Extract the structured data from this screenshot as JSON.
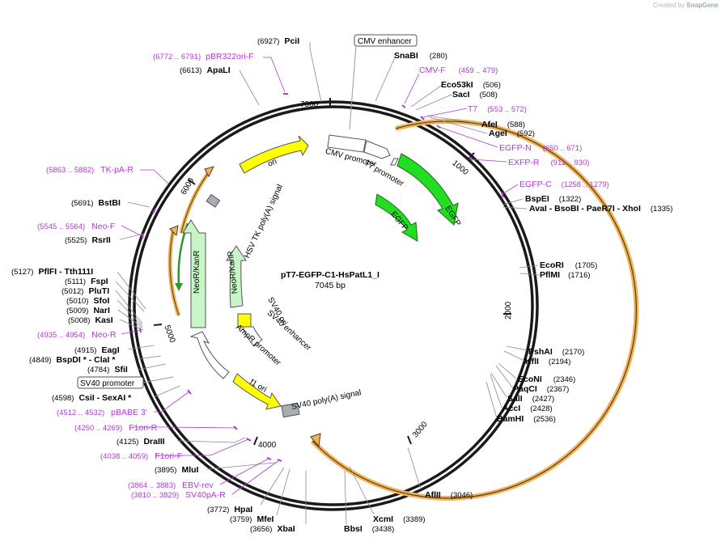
{
  "title": "pT7-EGFP-C1-HsPatL1_I",
  "length_text": "7045 bp",
  "total_bp": 7045,
  "credit": {
    "prefix": "Created by",
    "brand": "SnapGene"
  },
  "ticks": [
    {
      "bp": 1000,
      "label": "1000"
    },
    {
      "bp": 2000,
      "label": "2000"
    },
    {
      "bp": 3000,
      "label": "3000"
    },
    {
      "bp": 4000,
      "label": "4000"
    },
    {
      "bp": 5000,
      "label": "5000"
    },
    {
      "bp": 6000,
      "label": "6000"
    },
    {
      "bp": 7000,
      "label": "7000"
    }
  ],
  "colors": {
    "ring": "#1a1a1a",
    "orf": "#f0b35a",
    "egfp": "#22dd22",
    "ori": "#ffff00",
    "polya": "#a8adb3",
    "neo_light": "#c8f5c8",
    "neo_orf": "#2a9a2a",
    "promoter": "#ffffff",
    "primer": "#b03ad6"
  },
  "enzymes": [
    {
      "name": "PciI",
      "pos_text": "(6927)"
    },
    {
      "name": "SnaBI",
      "pos_text": "(280)"
    },
    {
      "name": "ApaLI",
      "pos_text": "(6613)"
    },
    {
      "name": "Eco53kI",
      "pos_text": "(506)"
    },
    {
      "name": "SacI",
      "pos_text": "(508)"
    },
    {
      "name": "AfeI",
      "pos_text": "(588)"
    },
    {
      "name": "AgeI",
      "pos_text": "(592)"
    },
    {
      "name": "BspEI",
      "pos_text": "(1322)"
    },
    {
      "name": "AvaI - BsoBI - PaeR7I - XhoI",
      "pos_text": "(1335)"
    },
    {
      "name": "EcoRI",
      "pos_text": "(1705)"
    },
    {
      "name": "PflMI",
      "pos_text": "(1716)"
    },
    {
      "name": "PshAI",
      "pos_text": "(2170)"
    },
    {
      "name": "KflI",
      "pos_text": "(2194)"
    },
    {
      "name": "EcoNI",
      "pos_text": "(2346)"
    },
    {
      "name": "PaqCI",
      "pos_text": "(2367)"
    },
    {
      "name": "SalI",
      "pos_text": "(2427)"
    },
    {
      "name": "AccI",
      "pos_text": "(2428)"
    },
    {
      "name": "BamHI",
      "pos_text": "(2536)"
    },
    {
      "name": "AflII",
      "pos_text": "(3046)"
    },
    {
      "name": "XcmI",
      "pos_text": "(3389)"
    },
    {
      "name": "BbsI",
      "pos_text": "(3438)"
    },
    {
      "name": "XbaI",
      "pos_text": "(3656)"
    },
    {
      "name": "MfeI",
      "pos_text": "(3759)"
    },
    {
      "name": "HpaI",
      "pos_text": "(3772)"
    },
    {
      "name": "MluI",
      "pos_text": "(3895)"
    },
    {
      "name": "DraIII",
      "pos_text": "(4125)"
    },
    {
      "name": "CsiI - SexAI *",
      "pos_text": "(4598)"
    },
    {
      "name": "SfiI",
      "pos_text": "(4784)"
    },
    {
      "name": "BspDI * - ClaI *",
      "pos_text": "(4849)"
    },
    {
      "name": "EagI",
      "pos_text": "(4915)"
    },
    {
      "name": "KasI",
      "pos_text": "(5008)"
    },
    {
      "name": "NarI",
      "pos_text": "(5009)"
    },
    {
      "name": "SfoI",
      "pos_text": "(5010)"
    },
    {
      "name": "PluTI",
      "pos_text": "(5012)"
    },
    {
      "name": "FspI",
      "pos_text": "(5111)"
    },
    {
      "name": "PflFI - Tth111I",
      "pos_text": "(5127)"
    },
    {
      "name": "RsrII",
      "pos_text": "(5525)"
    },
    {
      "name": "BstBI",
      "pos_text": "(5691)"
    }
  ],
  "primers": [
    {
      "name": "pBR322ori-F",
      "range": "(6772 .. 6791)"
    },
    {
      "name": "CMV-F",
      "range": "(459 .. 479)"
    },
    {
      "name": "T7",
      "range": "(553 .. 572)"
    },
    {
      "name": "EGFP-N",
      "range": "(650 .. 671)"
    },
    {
      "name": "EXFP-R",
      "range": "(911 .. 930)"
    },
    {
      "name": "EGFP-C",
      "range": "(1258 .. 1279)"
    },
    {
      "name": "TK-pA-R",
      "range": "(5863 .. 5882)"
    },
    {
      "name": "Neo-F",
      "range": "(5545 .. 5564)"
    },
    {
      "name": "Neo-R",
      "range": "(4935 .. 4954)"
    },
    {
      "name": "pBABE 3'",
      "range": "(4512 .. 4532)"
    },
    {
      "name": "F1ori-R",
      "range": "(4250 .. 4269)"
    },
    {
      "name": "F1ori-F",
      "range": "(4038 .. 4059)"
    },
    {
      "name": "EBV-rev",
      "range": "(3864 .. 3883)"
    },
    {
      "name": "SV40pA-R",
      "range": "(3810 .. 3829)"
    }
  ],
  "boxed_features": [
    {
      "name": "CMV enhancer"
    },
    {
      "name": "SV40 promoter"
    }
  ],
  "features": [
    {
      "name": "CMV promoter"
    },
    {
      "name": "T7 promoter"
    },
    {
      "name": "EGFP"
    },
    {
      "name": "EGFP"
    },
    {
      "name": "ori"
    },
    {
      "name": "HSV TK poly(A) signal"
    },
    {
      "name": "NeoR/KanR"
    },
    {
      "name": "NeoR/KanR"
    },
    {
      "name": "SV40 ori"
    },
    {
      "name": "SV40 enhancer"
    },
    {
      "name": "AmpR promoter"
    },
    {
      "name": "f1 ori"
    },
    {
      "name": "SV40 poly(A) signal"
    }
  ]
}
